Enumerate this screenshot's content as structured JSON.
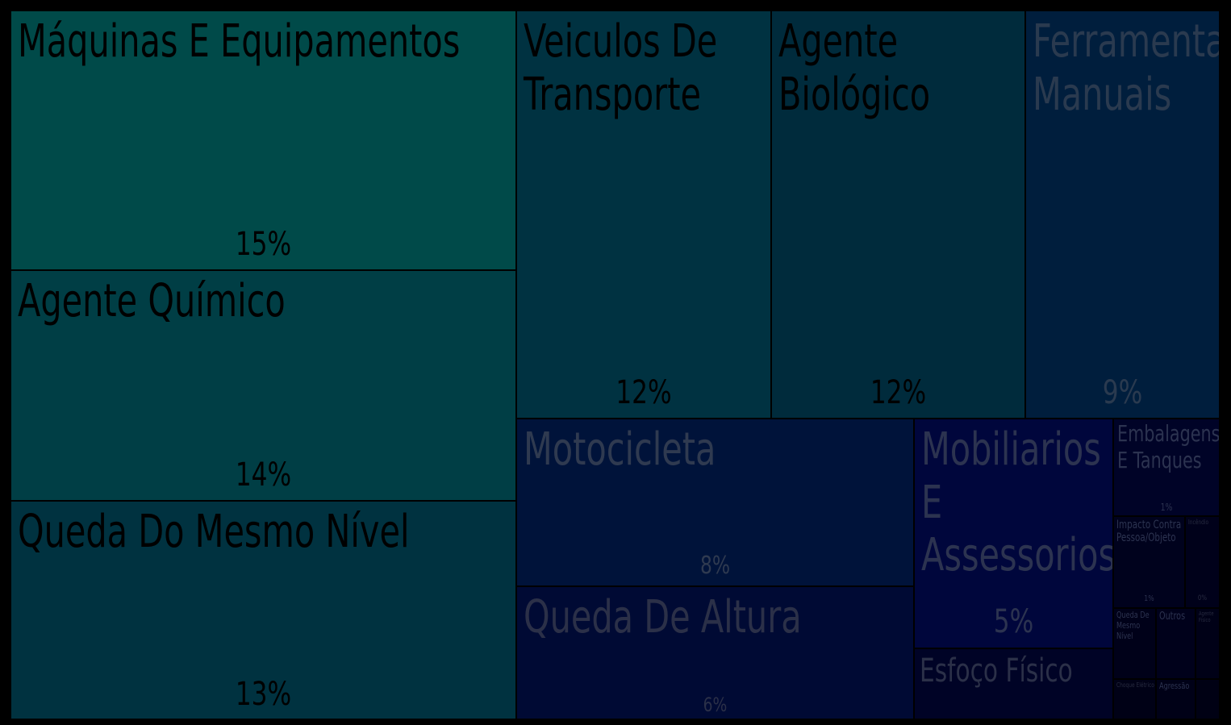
{
  "chart_data": {
    "type": "treemap",
    "items": [
      {
        "name": "Máquinas E Equipamentos",
        "label": "15%",
        "value": 15,
        "color": "#004a49",
        "text_color": "#000000"
      },
      {
        "name": "Agente Químico",
        "label": "14%",
        "value": 14,
        "color": "#003e45",
        "text_color": "#000000"
      },
      {
        "name": "Queda Do Mesmo Nível",
        "label": "13%",
        "value": 13,
        "color": "#003240",
        "text_color": "#000000"
      },
      {
        "name": "Veiculos De Transporte",
        "label": "12%",
        "value": 12,
        "color": "#003241",
        "text_color": "#000000"
      },
      {
        "name": "Agente Biológico",
        "label": "12%",
        "value": 12,
        "color": "#002b3c",
        "text_color": "#000000"
      },
      {
        "name": "Ferramentas Manuais",
        "label": "9%",
        "value": 9,
        "color": "#001e3d",
        "text_color": "#2a3a4f"
      },
      {
        "name": "Motocicleta",
        "label": "8%",
        "value": 8,
        "color": "#00133a",
        "text_color": "#2f3a50"
      },
      {
        "name": "Queda De Altura",
        "label": "6%",
        "value": 6,
        "color": "#000a34",
        "text_color": "#2b3048"
      },
      {
        "name": "Mobiliarios E Assessorios",
        "label": "5%",
        "value": 5,
        "color": "#00063c",
        "text_color": "#2c3350"
      },
      {
        "name": "Esfoço Físico",
        "label": "",
        "value": 2.5,
        "color": "#000326",
        "text_color": "#2b3048"
      },
      {
        "name": "Embalagens E Tanques",
        "label": "1%",
        "value": 1.2,
        "color": "#000327",
        "text_color": "#2c3350"
      },
      {
        "name": "Impacto Contra Pessoa/Objeto",
        "label": "1%",
        "value": 1,
        "color": "#00021d",
        "text_color": "#2c3350"
      },
      {
        "name": "Incêndio",
        "label": "0%",
        "value": 0.3,
        "color": "#00011a",
        "text_color": "#272b40"
      },
      {
        "name": "Queda De Mesmo Nível",
        "label": "",
        "value": 0.5,
        "color": "#000119",
        "text_color": "#2c3350"
      },
      {
        "name": "Outros",
        "label": "",
        "value": 0.5,
        "color": "#00011b",
        "text_color": "#2c3350"
      },
      {
        "name": "Agente Físico",
        "label": "",
        "value": 0.2,
        "color": "#000117",
        "text_color": "#272b40"
      },
      {
        "name": "Choque Elétrico",
        "label": "",
        "value": 0.2,
        "color": "#000116",
        "text_color": "#272b40"
      },
      {
        "name": "Agressão",
        "label": "",
        "value": 0.3,
        "color": "#000117",
        "text_color": "#2c3350"
      },
      {
        "name": "",
        "label": "",
        "value": 0.1,
        "color": "#000114",
        "text_color": "#272b40"
      }
    ]
  }
}
